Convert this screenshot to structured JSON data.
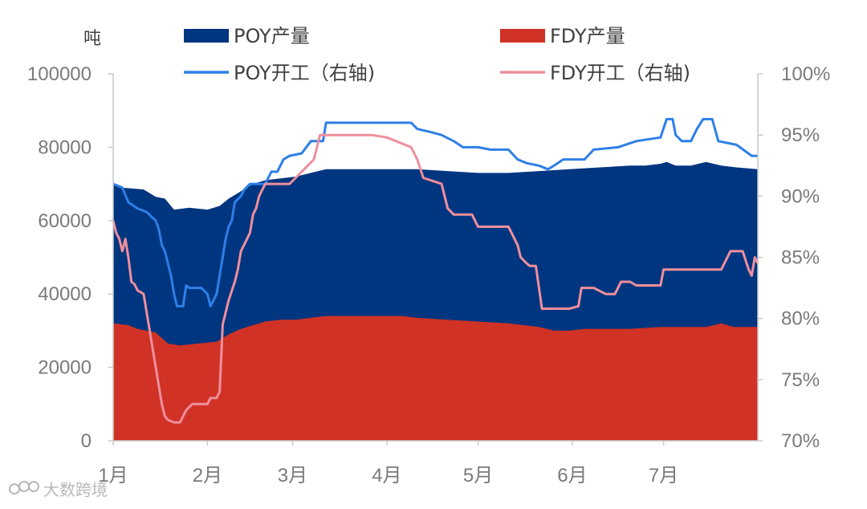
{
  "chart_data": {
    "type": "area",
    "unit_left": "吨",
    "x_tick_labels": [
      "1月",
      "2月",
      "3月",
      "4月",
      "5月",
      "6月",
      "7月"
    ],
    "x_tick_days": [
      0,
      31,
      59,
      90,
      120,
      151,
      181
    ],
    "x_range_days": [
      0,
      212
    ],
    "y_left": {
      "min": 0,
      "max": 100000,
      "ticks": [
        0,
        20000,
        40000,
        60000,
        80000,
        100000
      ]
    },
    "y_right": {
      "min": 70,
      "max": 100,
      "ticks": [
        70,
        75,
        80,
        85,
        90,
        95,
        100
      ],
      "tick_suffix": "%"
    },
    "legend": [
      {
        "label": "POY产量",
        "kind": "area",
        "color": "#003580"
      },
      {
        "label": "FDY产量",
        "kind": "area",
        "color": "#d03225"
      },
      {
        "label": "POY开工（右轴)",
        "kind": "line",
        "color": "#2e7fe6"
      },
      {
        "label": "FDY开工（右轴)",
        "kind": "line",
        "color": "#ef8f9c"
      }
    ],
    "series": [
      {
        "name": "POY产量",
        "axis": "left",
        "kind": "area",
        "color": "#003580",
        "points": [
          [
            0,
            70000
          ],
          [
            3,
            69000
          ],
          [
            10,
            68500
          ],
          [
            14,
            66500
          ],
          [
            17,
            66000
          ],
          [
            20,
            63000
          ],
          [
            25,
            63500
          ],
          [
            31,
            63000
          ],
          [
            35,
            64000
          ],
          [
            38,
            66000
          ],
          [
            42,
            68000
          ],
          [
            46,
            70000
          ],
          [
            50,
            71000
          ],
          [
            55,
            71500
          ],
          [
            60,
            72000
          ],
          [
            65,
            73000
          ],
          [
            70,
            74000
          ],
          [
            80,
            74000
          ],
          [
            90,
            74000
          ],
          [
            100,
            74000
          ],
          [
            110,
            73500
          ],
          [
            120,
            73000
          ],
          [
            130,
            73000
          ],
          [
            140,
            73500
          ],
          [
            150,
            74000
          ],
          [
            160,
            74500
          ],
          [
            170,
            75000
          ],
          [
            175,
            75000
          ],
          [
            180,
            75500
          ],
          [
            182,
            76000
          ],
          [
            185,
            75000
          ],
          [
            190,
            75000
          ],
          [
            195,
            76000
          ],
          [
            200,
            75000
          ],
          [
            205,
            74500
          ],
          [
            212,
            74000
          ]
        ]
      },
      {
        "name": "FDY产量",
        "axis": "left",
        "kind": "area",
        "color": "#d03225",
        "points": [
          [
            0,
            32000
          ],
          [
            5,
            31500
          ],
          [
            8,
            30500
          ],
          [
            14,
            29500
          ],
          [
            18,
            26500
          ],
          [
            22,
            26000
          ],
          [
            28,
            26500
          ],
          [
            34,
            27000
          ],
          [
            38,
            29000
          ],
          [
            42,
            30500
          ],
          [
            46,
            31500
          ],
          [
            50,
            32500
          ],
          [
            55,
            33000
          ],
          [
            60,
            33000
          ],
          [
            65,
            33500
          ],
          [
            70,
            34000
          ],
          [
            80,
            34000
          ],
          [
            95,
            34000
          ],
          [
            100,
            33500
          ],
          [
            110,
            33000
          ],
          [
            120,
            32500
          ],
          [
            130,
            32000
          ],
          [
            135,
            31500
          ],
          [
            140,
            31000
          ],
          [
            145,
            30000
          ],
          [
            150,
            30000
          ],
          [
            155,
            30500
          ],
          [
            170,
            30500
          ],
          [
            180,
            31000
          ],
          [
            195,
            31000
          ],
          [
            200,
            32000
          ],
          [
            204,
            31000
          ],
          [
            212,
            31000
          ]
        ]
      },
      {
        "name": "POY开工（右轴)",
        "axis": "right",
        "kind": "line",
        "color": "#2e7fe6",
        "points": [
          [
            0,
            91.0
          ],
          [
            3,
            90.7
          ],
          [
            5,
            89.5
          ],
          [
            8,
            89.0
          ],
          [
            11,
            88.7
          ],
          [
            14,
            88.0
          ],
          [
            15,
            87.3
          ],
          [
            16,
            86.0
          ],
          [
            17,
            85.5
          ],
          [
            18,
            84.5
          ],
          [
            19,
            83.5
          ],
          [
            20,
            82.0
          ],
          [
            21,
            81.0
          ],
          [
            22,
            81.0
          ],
          [
            23,
            81.0
          ],
          [
            24,
            82.7
          ],
          [
            25,
            82.5
          ],
          [
            27,
            82.5
          ],
          [
            29,
            82.5
          ],
          [
            31,
            82.0
          ],
          [
            32,
            81.0
          ],
          [
            33,
            81.5
          ],
          [
            34,
            82.0
          ],
          [
            35,
            83.5
          ],
          [
            36,
            85.0
          ],
          [
            37,
            86.5
          ],
          [
            38,
            87.5
          ],
          [
            39,
            88.0
          ],
          [
            40,
            89.5
          ],
          [
            42,
            90.0
          ],
          [
            43,
            90.5
          ],
          [
            45,
            91.0
          ],
          [
            47,
            91.0
          ],
          [
            50,
            91.0
          ],
          [
            52,
            92.0
          ],
          [
            54,
            92.0
          ],
          [
            56,
            93.0
          ],
          [
            58,
            93.3
          ],
          [
            62,
            93.5
          ],
          [
            65,
            94.5
          ],
          [
            69,
            94.5
          ],
          [
            70,
            96.0
          ],
          [
            80,
            96.0
          ],
          [
            90,
            96.0
          ],
          [
            98,
            96.0
          ],
          [
            100,
            95.5
          ],
          [
            105,
            95.2
          ],
          [
            108,
            95.0
          ],
          [
            112,
            94.5
          ],
          [
            115,
            94.0
          ],
          [
            120,
            94.0
          ],
          [
            124,
            93.8
          ],
          [
            130,
            93.8
          ],
          [
            133,
            93.0
          ],
          [
            136,
            92.7
          ],
          [
            140,
            92.5
          ],
          [
            143,
            92.2
          ],
          [
            145,
            92.5
          ],
          [
            148,
            93.0
          ],
          [
            155,
            93.0
          ],
          [
            158,
            93.8
          ],
          [
            166,
            94.0
          ],
          [
            172,
            94.5
          ],
          [
            180,
            94.8
          ],
          [
            182,
            96.3
          ],
          [
            184,
            96.3
          ],
          [
            185,
            95.0
          ],
          [
            187,
            94.5
          ],
          [
            190,
            94.5
          ],
          [
            192,
            95.5
          ],
          [
            194,
            96.3
          ],
          [
            197,
            96.3
          ],
          [
            199,
            94.5
          ],
          [
            205,
            94.2
          ],
          [
            210,
            93.3
          ],
          [
            212,
            93.3
          ]
        ]
      },
      {
        "name": "FDY开工（右轴)",
        "axis": "right",
        "kind": "line",
        "color": "#ef8f9c",
        "points": [
          [
            0,
            88.0
          ],
          [
            1,
            87.0
          ],
          [
            2,
            86.5
          ],
          [
            3,
            85.5
          ],
          [
            4,
            86.5
          ],
          [
            5,
            85.0
          ],
          [
            6,
            83.0
          ],
          [
            7,
            82.8
          ],
          [
            8,
            82.3
          ],
          [
            10,
            82.0
          ],
          [
            11,
            80.5
          ],
          [
            12,
            79.0
          ],
          [
            13,
            77.5
          ],
          [
            14,
            76.0
          ],
          [
            15,
            74.5
          ],
          [
            16,
            73.0
          ],
          [
            17,
            72.0
          ],
          [
            18,
            71.7
          ],
          [
            20,
            71.5
          ],
          [
            22,
            71.5
          ],
          [
            24,
            72.5
          ],
          [
            26,
            73.0
          ],
          [
            29,
            73.0
          ],
          [
            31,
            73.0
          ],
          [
            32,
            73.5
          ],
          [
            34,
            73.5
          ],
          [
            35,
            74.0
          ],
          [
            36,
            79.5
          ],
          [
            37,
            80.5
          ],
          [
            38,
            81.5
          ],
          [
            40,
            83.0
          ],
          [
            41,
            84.0
          ],
          [
            42,
            85.5
          ],
          [
            43,
            86.0
          ],
          [
            44,
            86.5
          ],
          [
            45,
            87.0
          ],
          [
            46,
            88.5
          ],
          [
            47,
            89.0
          ],
          [
            48,
            90.0
          ],
          [
            49,
            90.5
          ],
          [
            50,
            91.0
          ],
          [
            58,
            91.0
          ],
          [
            60,
            91.5
          ],
          [
            62,
            92.0
          ],
          [
            64,
            92.5
          ],
          [
            66,
            93.0
          ],
          [
            67,
            94.0
          ],
          [
            68,
            95.0
          ],
          [
            70,
            95.0
          ],
          [
            85,
            95.0
          ],
          [
            90,
            94.8
          ],
          [
            95,
            94.3
          ],
          [
            98,
            94.0
          ],
          [
            100,
            93.0
          ],
          [
            102,
            91.5
          ],
          [
            108,
            91.0
          ],
          [
            110,
            89.0
          ],
          [
            112,
            88.5
          ],
          [
            118,
            88.5
          ],
          [
            119,
            88.0
          ],
          [
            120,
            87.5
          ],
          [
            122,
            87.5
          ],
          [
            130,
            87.5
          ],
          [
            133,
            86.0
          ],
          [
            134,
            85.0
          ],
          [
            136,
            84.5
          ],
          [
            137,
            84.3
          ],
          [
            139,
            84.3
          ],
          [
            141,
            80.8
          ],
          [
            150,
            80.8
          ],
          [
            153,
            81.0
          ],
          [
            154,
            82.5
          ],
          [
            158,
            82.5
          ],
          [
            162,
            82.0
          ],
          [
            165,
            82.0
          ],
          [
            167,
            83.0
          ],
          [
            170,
            83.0
          ],
          [
            172,
            82.7
          ],
          [
            180,
            82.7
          ],
          [
            181,
            84.0
          ],
          [
            190,
            84.0
          ],
          [
            200,
            84.0
          ],
          [
            203,
            85.5
          ],
          [
            207,
            85.5
          ],
          [
            209,
            84.0
          ],
          [
            210,
            83.5
          ],
          [
            211,
            85.0
          ],
          [
            212,
            84.5
          ]
        ]
      }
    ]
  },
  "watermark": "大数跨境",
  "colors": {
    "poy_area": "#003580",
    "fdy_area": "#d03225",
    "poy_line": "#2e7fe6",
    "fdy_line": "#ef8f9c",
    "axis": "#c8c8c8",
    "tick_text": "#7a7a7a"
  }
}
